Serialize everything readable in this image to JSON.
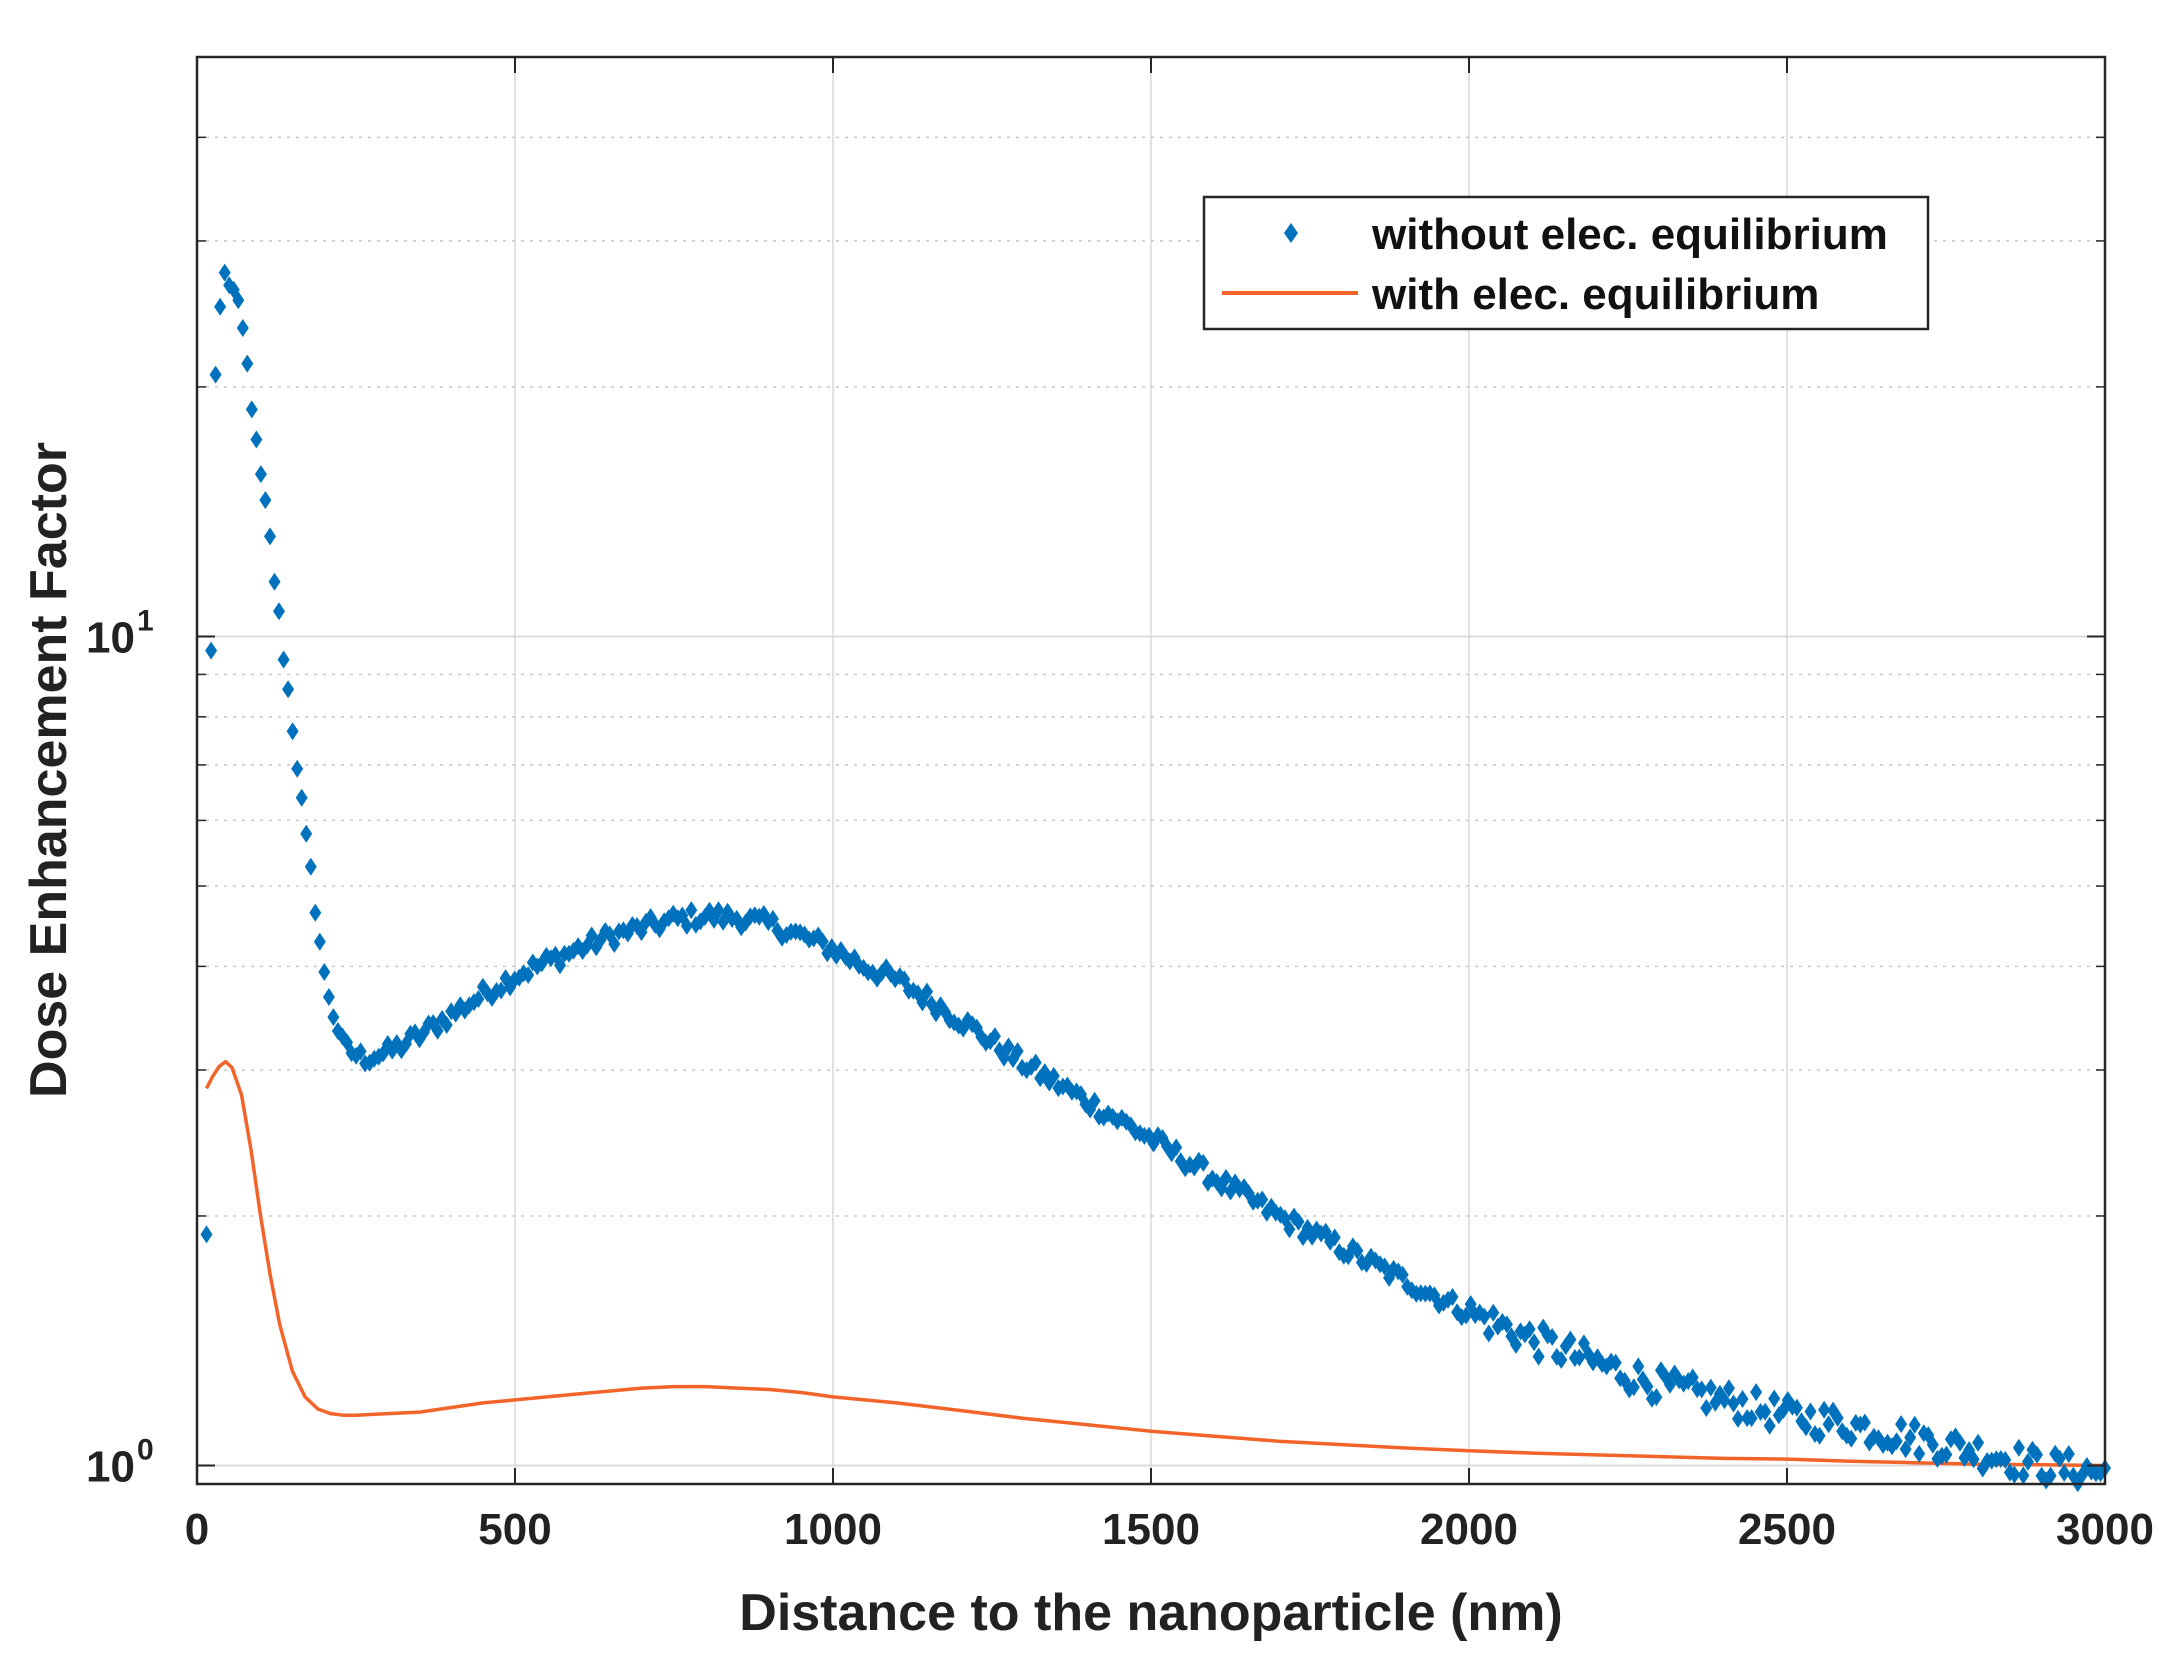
{
  "chart_data": {
    "type": "scatter",
    "title": "",
    "xlabel": "Distance to the nanoparticle (nm)",
    "ylabel": "Dose Enhancement Factor",
    "xlim": [
      0,
      3000
    ],
    "ylim": [
      0.95,
      50
    ],
    "yscale": "log",
    "grid": true,
    "legend_position": "top-right",
    "x_ticks": [
      0,
      500,
      1000,
      1500,
      2000,
      2500,
      3000
    ],
    "x_tick_labels": [
      "0",
      "500",
      "1000",
      "1500",
      "2000",
      "2500",
      "3000"
    ],
    "y_ticks": [
      1,
      10
    ],
    "y_tick_label_base": "10",
    "y_tick_label_exponents": [
      "0",
      "1"
    ],
    "colors": {
      "series1": "#0072BD",
      "series2": "#F2642A",
      "grid": "#d9d9d9",
      "axis": "#262626"
    },
    "series": [
      {
        "name": "without elec. equilibrium",
        "style": "markers",
        "marker": "diamond",
        "color": "#0072BD",
        "anchors": {
          "x": [
            15,
            25,
            40,
            55,
            70,
            85,
            95,
            110,
            125,
            140,
            155,
            170,
            185,
            200,
            215,
            230,
            260,
            300,
            350,
            400,
            450,
            500,
            550,
            600,
            650,
            700,
            750,
            800,
            850,
            900,
            950,
            1000,
            1050,
            1100,
            1150,
            1200,
            1300,
            1400,
            1500,
            1600,
            1700,
            1800,
            1900,
            2000,
            2100,
            2200,
            2300,
            2400,
            2500,
            2600,
            2700,
            2800,
            2900,
            3000
          ],
          "y": [
            1.9,
            18.5,
            27.5,
            26.5,
            24.0,
            19.5,
            16.5,
            14.0,
            11.2,
            9.0,
            7.3,
            5.8,
            4.8,
            3.9,
            3.5,
            3.2,
            3.1,
            3.15,
            3.3,
            3.5,
            3.7,
            3.9,
            4.05,
            4.2,
            4.35,
            4.45,
            4.55,
            4.6,
            4.58,
            4.5,
            4.35,
            4.2,
            4.0,
            3.85,
            3.65,
            3.45,
            3.05,
            2.75,
            2.48,
            2.22,
            2.0,
            1.83,
            1.67,
            1.53,
            1.42,
            1.33,
            1.25,
            1.2,
            1.15,
            1.12,
            1.08,
            1.04,
            1.0,
            0.98
          ]
        },
        "count": 420,
        "noise_fraction": 0.025
      },
      {
        "name": "with elec. equilibrium",
        "style": "line",
        "color": "#F2642A",
        "x": [
          15,
          25,
          35,
          45,
          55,
          70,
          85,
          100,
          115,
          130,
          150,
          170,
          190,
          210,
          230,
          250,
          300,
          350,
          400,
          450,
          500,
          550,
          600,
          650,
          700,
          750,
          800,
          850,
          900,
          950,
          1000,
          1100,
          1200,
          1300,
          1400,
          1500,
          1600,
          1700,
          1800,
          1900,
          2000,
          2100,
          2200,
          2300,
          2400,
          2500,
          2600,
          2700,
          2800,
          2900,
          3000
        ],
        "y": [
          2.85,
          2.95,
          3.03,
          3.07,
          3.02,
          2.8,
          2.4,
          2.0,
          1.7,
          1.48,
          1.3,
          1.21,
          1.17,
          1.155,
          1.15,
          1.15,
          1.155,
          1.16,
          1.175,
          1.19,
          1.2,
          1.21,
          1.22,
          1.23,
          1.24,
          1.245,
          1.245,
          1.24,
          1.235,
          1.225,
          1.21,
          1.19,
          1.165,
          1.14,
          1.12,
          1.1,
          1.085,
          1.07,
          1.06,
          1.05,
          1.042,
          1.035,
          1.03,
          1.025,
          1.02,
          1.018,
          1.012,
          1.008,
          1.004,
          1.002,
          1.0
        ]
      }
    ]
  }
}
